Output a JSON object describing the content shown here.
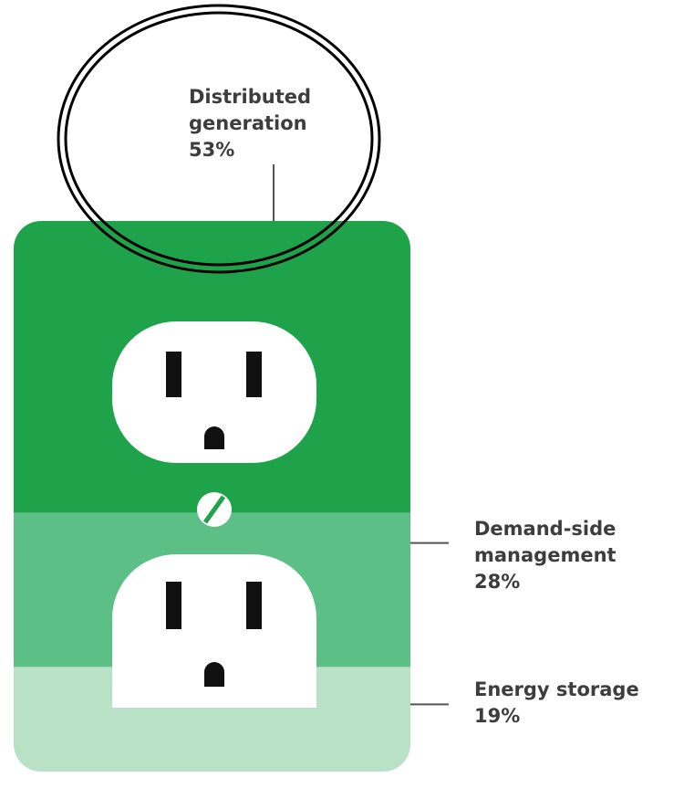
{
  "chart_data": {
    "type": "stacked-share",
    "categories": [
      "Distributed generation",
      "Demand-side management",
      "Energy storage"
    ],
    "values": [
      53,
      28,
      19
    ],
    "value_labels": [
      "53%",
      "28%",
      "19%"
    ],
    "colors": [
      "#1fa34a",
      "#5cbf86",
      "#b8e1c6"
    ]
  }
}
